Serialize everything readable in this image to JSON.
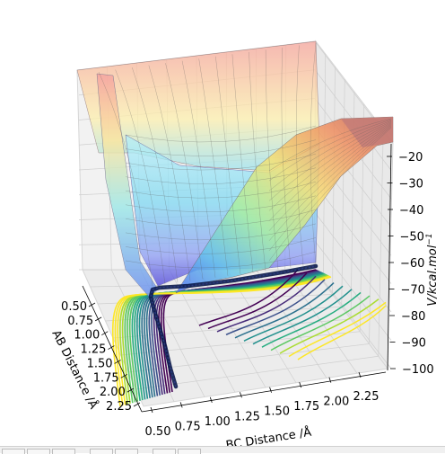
{
  "chart_data": {
    "type": "surface3d",
    "title": "",
    "xlabel": "AB Distance /Å",
    "ylabel": "BC Distance /Å",
    "zlabel": "V/kcal.mol$^{-1}$",
    "zlabel_main": "V/kcal.mol",
    "zlabel_sup": "−1",
    "xlim": [
      0.4,
      2.35
    ],
    "ylim": [
      0.4,
      2.35
    ],
    "zlim": [
      -100,
      -20
    ],
    "x_ticks": [
      "0.50",
      "0.75",
      "1.00",
      "1.25",
      "1.50",
      "1.75",
      "2.00",
      "2.25"
    ],
    "y_ticks": [
      "0.50",
      "0.75",
      "1.00",
      "1.25",
      "1.50",
      "1.75",
      "2.00",
      "2.25"
    ],
    "z_ticks": [
      "−20",
      "−30",
      "−40",
      "−50",
      "−60",
      "−70",
      "−80",
      "−90",
      "−100"
    ],
    "z_tick_values": [
      -20,
      -30,
      -40,
      -50,
      -60,
      -70,
      -80,
      -90,
      -100
    ],
    "surface_colormap": "jet",
    "contour_colormap": "viridis",
    "trajectory_color": "#0b1a4a",
    "grid": true
  },
  "toolbar": {}
}
